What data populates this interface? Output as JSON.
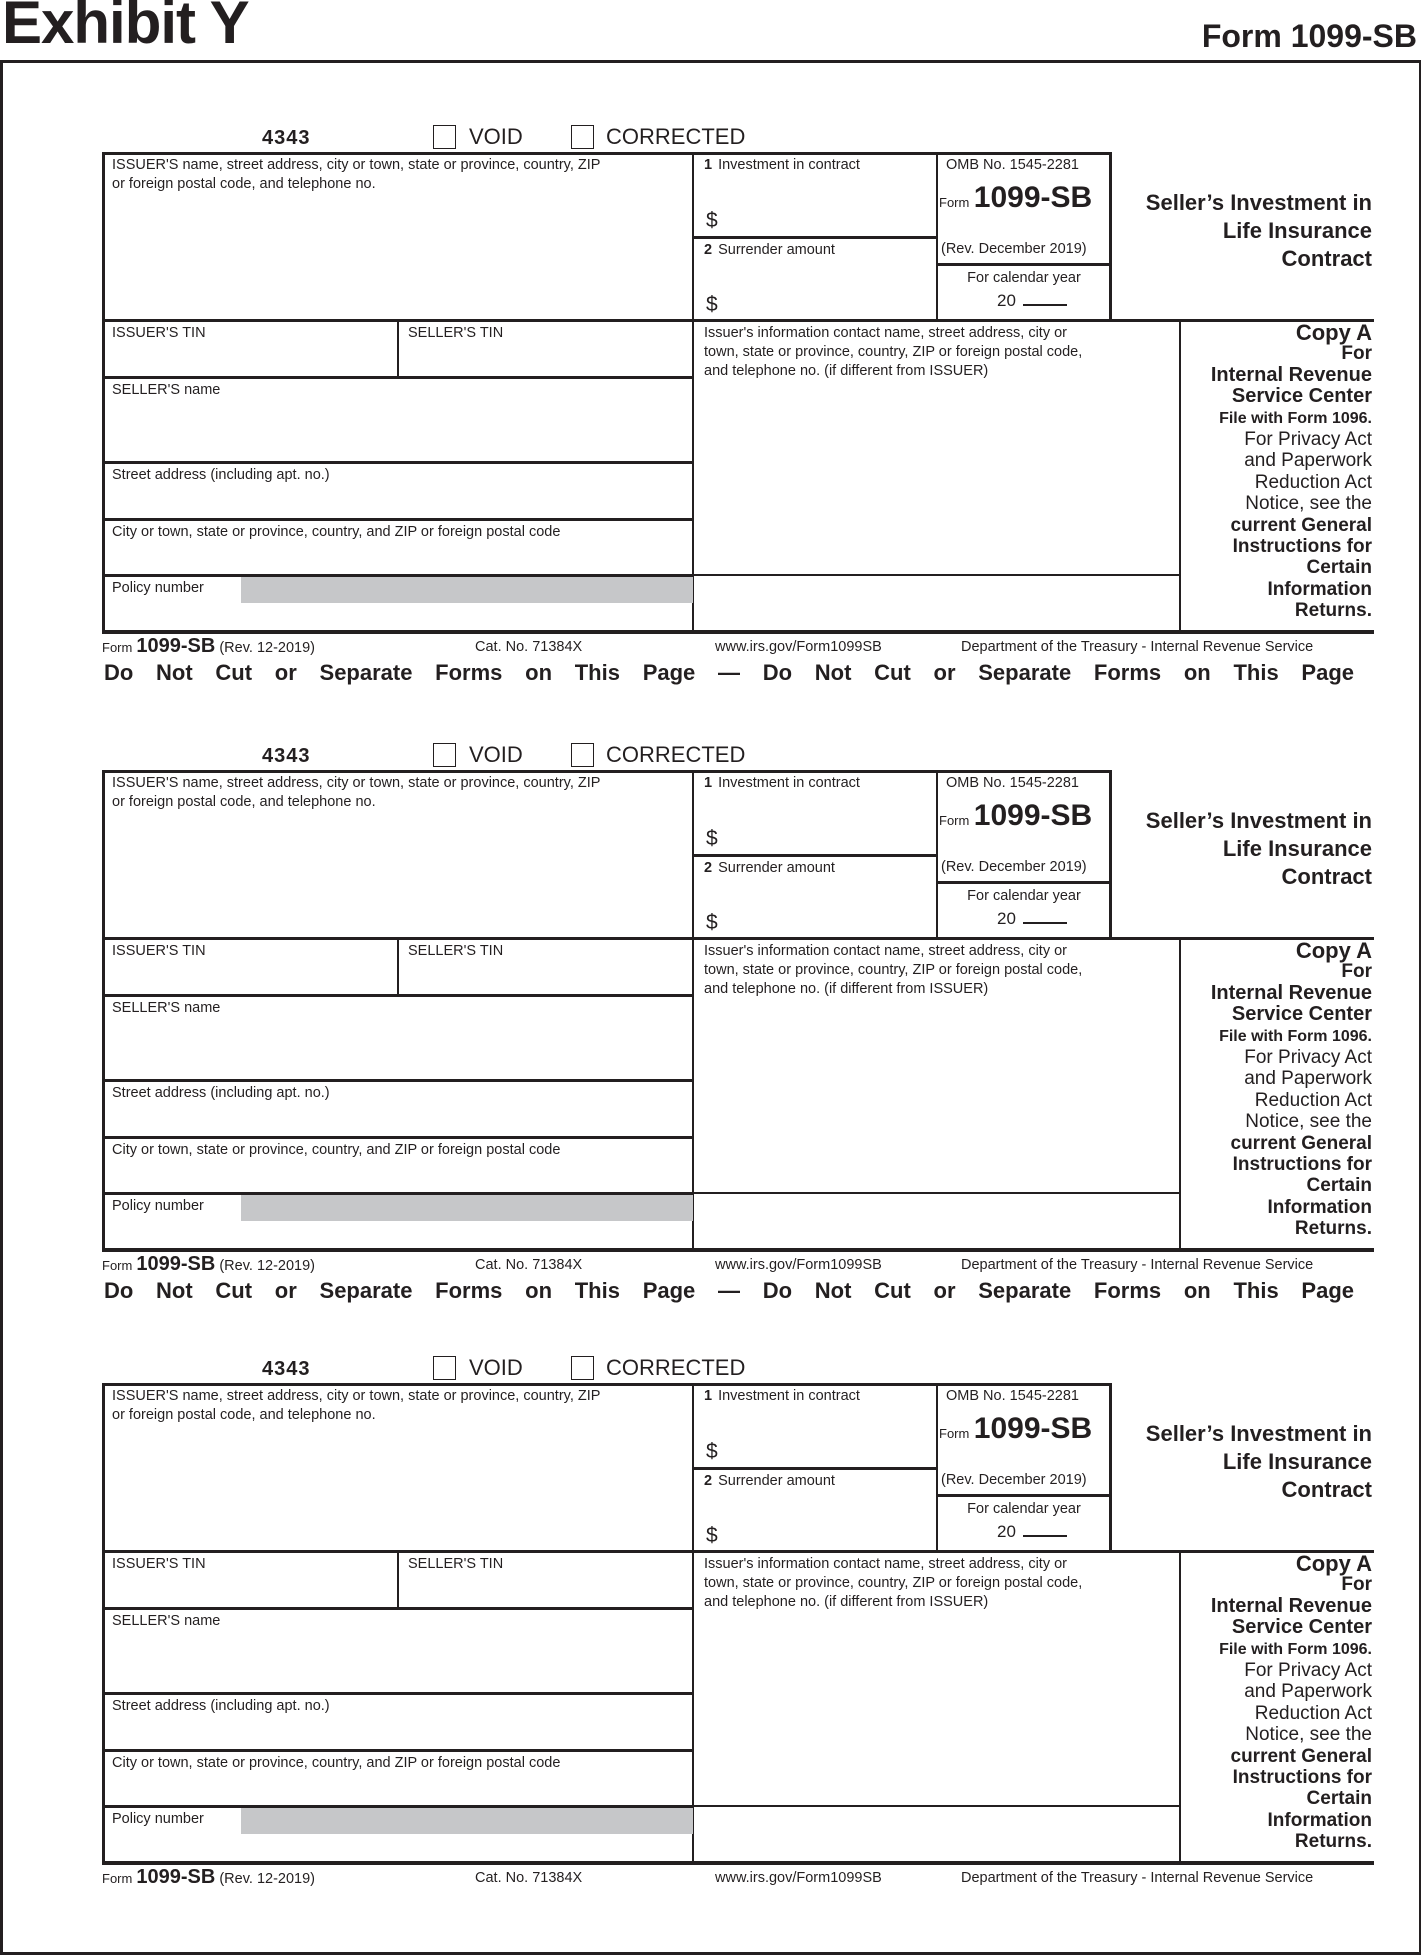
{
  "header": {
    "exhibit": "Exhibit Y",
    "form_title": "Form 1099-SB"
  },
  "form": {
    "code": "4343",
    "void_label": "VOID",
    "corrected_label": "CORRECTED",
    "void_checked": false,
    "corrected_checked": false,
    "issuer_name_label_1": "ISSUER'S name, street address, city or town, state or province, country, ZIP",
    "issuer_name_label_2": "or foreign postal code, and telephone no.",
    "box1_num": "1",
    "box1_label": "Investment in contract",
    "box2_num": "2",
    "box2_label": "Surrender amount",
    "dollar": "$",
    "omb": "OMB No. 1545-2281",
    "form_word": "Form",
    "form_number": "1099-SB",
    "rev": "(Rev. December 2019)",
    "calendar_year_label": "For calendar year",
    "year_prefix": "20",
    "title_lines": [
      "Seller’s Investment in",
      "Life Insurance",
      "Contract"
    ],
    "issuer_tin": "ISSUER'S TIN",
    "seller_tin": "SELLER'S TIN",
    "contact_label_1": "Issuer's information contact name, street address, city or",
    "contact_label_2": "town, state or province, country, ZIP or foreign postal code,",
    "contact_label_3": "and telephone no. (if different from ISSUER)",
    "seller_name": "SELLER'S name",
    "street": "Street address (including apt. no.)",
    "city": "City or town, state or province, country, and ZIP or foreign postal code",
    "policy": "Policy number",
    "copy_lines": [
      "Copy A",
      "For",
      "Internal Revenue",
      "Service Center",
      "File with Form 1096.",
      "For Privacy Act",
      "and Paperwork",
      "Reduction Act",
      "Notice, see the",
      "current General",
      "Instructions for",
      "Certain",
      "Information",
      "Returns."
    ],
    "footer": {
      "form_word": "Form",
      "form_number": "1099-SB",
      "rev": "(Rev.  12-2019)",
      "cat": "Cat. No. 71384X",
      "url": "www.irs.gov/Form1099SB",
      "dept": "Department of the Treasury - Internal Revenue Service"
    }
  },
  "separator_notice": "Do Not Cut or Separate Forms on This Page — Do Not Cut or Separate Forms on This Page"
}
